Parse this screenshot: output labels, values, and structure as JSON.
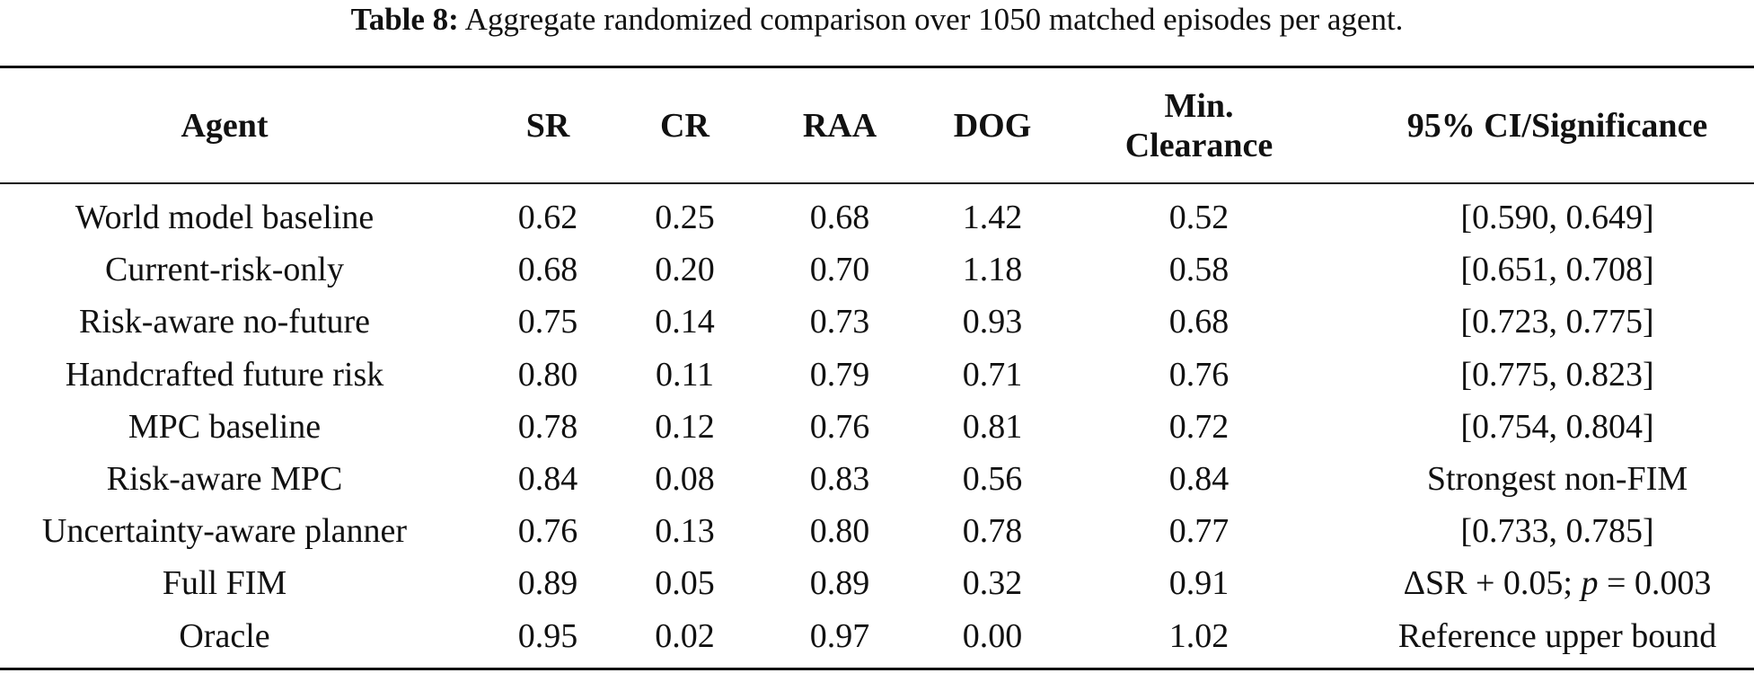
{
  "caption": {
    "label": "Table 8:",
    "text": "Aggregate randomized comparison over 1050 matched episodes per agent."
  },
  "table": {
    "headers": {
      "agent": "Agent",
      "sr": "SR",
      "cr": "CR",
      "raa": "RAA",
      "dog": "DOG",
      "min_clearance_line1": "Min.",
      "min_clearance_line2": "Clearance",
      "ci": "95% CI/Significance"
    },
    "rows": [
      {
        "agent": "World model baseline",
        "sr": "0.62",
        "cr": "0.25",
        "raa": "0.68",
        "dog": "1.42",
        "min_clearance": "0.52",
        "ci": "[0.590, 0.649]"
      },
      {
        "agent": "Current-risk-only",
        "sr": "0.68",
        "cr": "0.20",
        "raa": "0.70",
        "dog": "1.18",
        "min_clearance": "0.58",
        "ci": "[0.651, 0.708]"
      },
      {
        "agent": "Risk-aware no-future",
        "sr": "0.75",
        "cr": "0.14",
        "raa": "0.73",
        "dog": "0.93",
        "min_clearance": "0.68",
        "ci": "[0.723, 0.775]"
      },
      {
        "agent": "Handcrafted future risk",
        "sr": "0.80",
        "cr": "0.11",
        "raa": "0.79",
        "dog": "0.71",
        "min_clearance": "0.76",
        "ci": "[0.775, 0.823]"
      },
      {
        "agent": "MPC baseline",
        "sr": "0.78",
        "cr": "0.12",
        "raa": "0.76",
        "dog": "0.81",
        "min_clearance": "0.72",
        "ci": "[0.754, 0.804]"
      },
      {
        "agent": "Risk-aware MPC",
        "sr": "0.84",
        "cr": "0.08",
        "raa": "0.83",
        "dog": "0.56",
        "min_clearance": "0.84",
        "ci": "Strongest non-FIM"
      },
      {
        "agent": "Uncertainty-aware planner",
        "sr": "0.76",
        "cr": "0.13",
        "raa": "0.80",
        "dog": "0.78",
        "min_clearance": "0.77",
        "ci": "[0.733, 0.785]"
      },
      {
        "agent": "Full FIM",
        "sr": "0.89",
        "cr": "0.05",
        "raa": "0.89",
        "dog": "0.32",
        "min_clearance": "0.91",
        "ci_prefix": "ΔSR + 0.05; ",
        "ci_italic": "p",
        "ci_suffix": " = 0.003"
      },
      {
        "agent": "Oracle",
        "sr": "0.95",
        "cr": "0.02",
        "raa": "0.97",
        "dog": "0.00",
        "min_clearance": "1.02",
        "ci": "Reference upper bound"
      }
    ]
  }
}
